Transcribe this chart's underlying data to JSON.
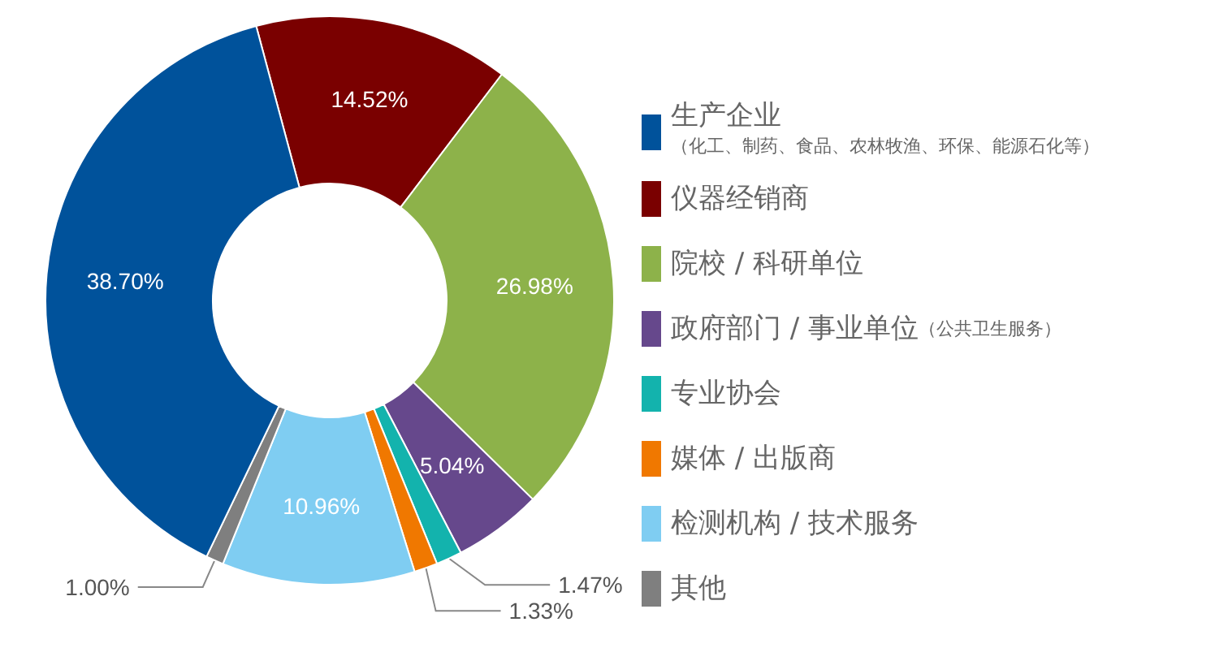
{
  "chart_data": {
    "type": "donut",
    "categories": [
      "生产企业（化工、制药、食品、农林牧渔、环保、能源石化等）",
      "仪器经销商",
      "院校 / 科研单位",
      "政府部门 / 事业单位（公共卫生服务）",
      "专业协会",
      "媒体 / 出版商",
      "检测机构 / 技术服务",
      "其他"
    ],
    "values": [
      38.7,
      14.52,
      26.98,
      5.04,
      1.47,
      1.33,
      10.96,
      1.0
    ],
    "value_labels": [
      "38.70%",
      "14.52%",
      "26.98%",
      "5.04%",
      "1.47%",
      "1.33%",
      "10.96%",
      "1.00%"
    ],
    "colors": [
      "#00529b",
      "#7a0000",
      "#8db24a",
      "#66488c",
      "#13b3ad",
      "#f07800",
      "#7fcdf2",
      "#7f7f7f"
    ],
    "legend": "right"
  }
}
